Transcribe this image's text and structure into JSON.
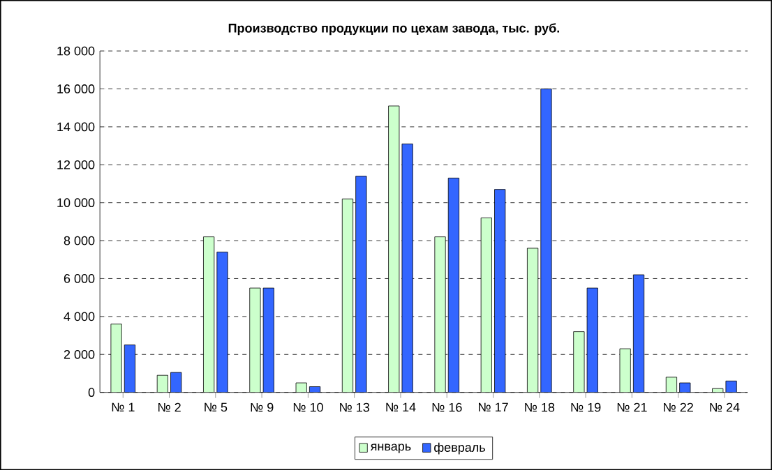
{
  "chart_data": {
    "type": "bar",
    "title": "Производство продукции по цехам завода, тыс. руб.",
    "categories": [
      "№ 1",
      "№ 2",
      "№ 5",
      "№ 9",
      "№ 10",
      "№ 13",
      "№ 14",
      "№ 16",
      "№ 17",
      "№ 18",
      "№ 19",
      "№ 21",
      "№ 22",
      "№ 24"
    ],
    "series": [
      {
        "name": "январь",
        "color": "#ccffcc",
        "values": [
          3600,
          900,
          8200,
          5500,
          500,
          10200,
          15100,
          8200,
          9200,
          7600,
          3200,
          2300,
          800,
          200
        ]
      },
      {
        "name": "февраль",
        "color": "#3366ff",
        "values": [
          2500,
          1050,
          7400,
          5500,
          300,
          11400,
          13100,
          11300,
          10700,
          16000,
          5500,
          6200,
          500,
          600
        ]
      }
    ],
    "ylim": [
      0,
      18000
    ],
    "yticks": [
      {
        "value": 0,
        "label": "0"
      },
      {
        "value": 2000,
        "label": "2 000"
      },
      {
        "value": 4000,
        "label": "4 000"
      },
      {
        "value": 6000,
        "label": "6 000"
      },
      {
        "value": 8000,
        "label": "8 000"
      },
      {
        "value": 10000,
        "label": "10 000"
      },
      {
        "value": 12000,
        "label": "12 000"
      },
      {
        "value": 14000,
        "label": "14 000"
      },
      {
        "value": 16000,
        "label": "16 000"
      },
      {
        "value": 18000,
        "label": "18 000"
      }
    ],
    "grid": "y",
    "legend": "bottom"
  }
}
